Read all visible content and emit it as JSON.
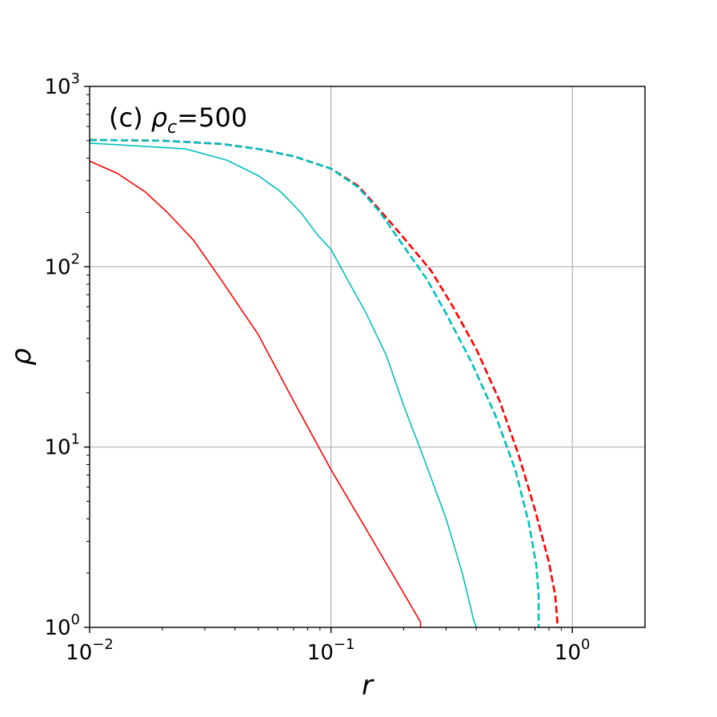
{
  "chart_data": {
    "type": "line",
    "annotation": {
      "prefix": "(c) ",
      "symbol": "ρ",
      "subscript": "c",
      "suffix": "=500"
    },
    "xlabel": "r",
    "ylabel": "ρ",
    "xscale": "log",
    "yscale": "log",
    "xlim": [
      0.01,
      2.0
    ],
    "ylim": [
      1,
      1000
    ],
    "grid": true,
    "x_ticks": [
      {
        "value": 0.01,
        "base": "10",
        "exp": "−2"
      },
      {
        "value": 0.1,
        "base": "10",
        "exp": "−1"
      },
      {
        "value": 1,
        "base": "10",
        "exp": "0"
      }
    ],
    "y_ticks": [
      {
        "value": 1,
        "base": "10",
        "exp": "0"
      },
      {
        "value": 10,
        "base": "10",
        "exp": "1"
      },
      {
        "value": 100,
        "base": "10",
        "exp": "2"
      },
      {
        "value": 1000,
        "base": "10",
        "exp": "3"
      }
    ],
    "series": [
      {
        "color": "#ff0000",
        "style": "solid",
        "points": [
          [
            0.01,
            385
          ],
          [
            0.013,
            330
          ],
          [
            0.017,
            260
          ],
          [
            0.021,
            200
          ],
          [
            0.027,
            140
          ],
          [
            0.035,
            85
          ],
          [
            0.05,
            42
          ],
          [
            0.07,
            18
          ],
          [
            0.1,
            7.5
          ],
          [
            0.14,
            3.5
          ],
          [
            0.2,
            1.55
          ],
          [
            0.235,
            1.07
          ],
          [
            0.235,
            1.0
          ]
        ]
      },
      {
        "color": "#00bfbf",
        "style": "solid",
        "points": [
          [
            0.01,
            485
          ],
          [
            0.025,
            450
          ],
          [
            0.037,
            390
          ],
          [
            0.05,
            320
          ],
          [
            0.062,
            260
          ],
          [
            0.075,
            200
          ],
          [
            0.088,
            150
          ],
          [
            0.1,
            125
          ],
          [
            0.12,
            80
          ],
          [
            0.14,
            55
          ],
          [
            0.17,
            32
          ],
          [
            0.2,
            17
          ],
          [
            0.24,
            9
          ],
          [
            0.3,
            4
          ],
          [
            0.35,
            2
          ],
          [
            0.39,
            1.1
          ],
          [
            0.4,
            1.0
          ]
        ]
      },
      {
        "color": "#ff0000",
        "style": "dashed",
        "points": [
          [
            0.01,
            505
          ],
          [
            0.02,
            500
          ],
          [
            0.035,
            480
          ],
          [
            0.05,
            450
          ],
          [
            0.07,
            410
          ],
          [
            0.1,
            350
          ],
          [
            0.13,
            280
          ],
          [
            0.16,
            205
          ],
          [
            0.2,
            145
          ],
          [
            0.26,
            95
          ],
          [
            0.32,
            60
          ],
          [
            0.4,
            35
          ],
          [
            0.5,
            18
          ],
          [
            0.6,
            9
          ],
          [
            0.7,
            4.5
          ],
          [
            0.8,
            2.3
          ],
          [
            0.85,
            1.5
          ],
          [
            0.87,
            1.0
          ]
        ]
      },
      {
        "color": "#00bfbf",
        "style": "dashed",
        "points": [
          [
            0.01,
            505
          ],
          [
            0.02,
            500
          ],
          [
            0.035,
            480
          ],
          [
            0.05,
            450
          ],
          [
            0.07,
            410
          ],
          [
            0.1,
            350
          ],
          [
            0.13,
            275
          ],
          [
            0.16,
            200
          ],
          [
            0.2,
            130
          ],
          [
            0.25,
            85
          ],
          [
            0.3,
            55
          ],
          [
            0.38,
            30
          ],
          [
            0.48,
            15
          ],
          [
            0.58,
            7.5
          ],
          [
            0.66,
            3.8
          ],
          [
            0.71,
            2.2
          ],
          [
            0.725,
            1.5
          ],
          [
            0.725,
            1.0
          ]
        ]
      }
    ]
  }
}
